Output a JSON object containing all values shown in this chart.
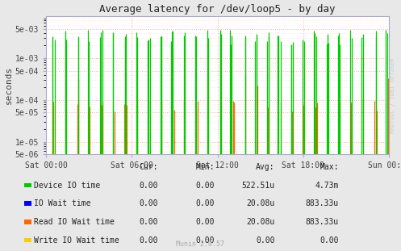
{
  "title": "Average latency for /dev/loop5 - by day",
  "ylabel": "seconds",
  "bg_color": "#e8e8e8",
  "plot_bg_color": "#ffffff",
  "grid_color_major": "#ffaaaa",
  "grid_color_minor": "#ffdddd",
  "ymin": 5e-06,
  "ymax": 0.01,
  "xmin": 0,
  "xmax": 86400,
  "xticks": [
    0,
    21600,
    43200,
    64800,
    86400
  ],
  "xticklabels": [
    "Sat 00:00",
    "Sat 06:00",
    "Sat 12:00",
    "Sat 18:00",
    "Sun 00:00"
  ],
  "ytick_vals": [
    5e-06,
    1e-05,
    5e-05,
    0.0001,
    0.0005,
    0.001,
    0.005
  ],
  "ytick_labels": [
    "5e-06",
    "1e-05",
    "5e-05",
    "1e-04",
    "5e-04",
    "1e-03",
    "5e-03"
  ],
  "legend_entries": [
    {
      "label": "Device IO time",
      "color": "#00cc00"
    },
    {
      "label": "IO Wait time",
      "color": "#0000ff"
    },
    {
      "label": "Read IO Wait time",
      "color": "#ff6600"
    },
    {
      "label": "Write IO Wait time",
      "color": "#ffcc00"
    }
  ],
  "table_headers": [
    "Cur:",
    "Min:",
    "Avg:",
    "Max:"
  ],
  "table_rows": [
    [
      "0.00",
      "0.00",
      "522.51u",
      "4.73m"
    ],
    [
      "0.00",
      "0.00",
      "20.08u",
      "883.33u"
    ],
    [
      "0.00",
      "0.00",
      "20.08u",
      "883.33u"
    ],
    [
      "0.00",
      "0.00",
      "0.00",
      "0.00"
    ]
  ],
  "footnote": "Munin 2.0.57",
  "rrdtool_label": "RRDTOOL / TOBI OETIKER",
  "watermark_color": "#cccccc"
}
